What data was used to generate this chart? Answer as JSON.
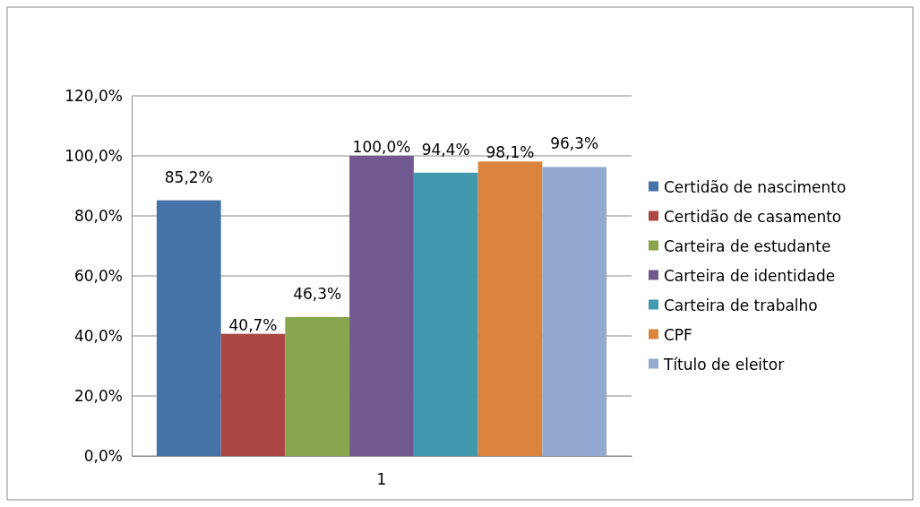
{
  "chart_data": {
    "type": "bar",
    "categories": [
      "1"
    ],
    "series": [
      {
        "name": "Certidão de nascimento",
        "color": "#4572a7",
        "values": [
          85.2
        ],
        "value_labels": [
          "85,2%"
        ]
      },
      {
        "name": "Certidão de casamento",
        "color": "#aa4643",
        "values": [
          40.7
        ],
        "value_labels": [
          "40,7%"
        ]
      },
      {
        "name": "Carteira de estudante",
        "color": "#89a54e",
        "values": [
          46.3
        ],
        "value_labels": [
          "46,3%"
        ]
      },
      {
        "name": "Carteira de identidade",
        "color": "#71588f",
        "values": [
          100.0
        ],
        "value_labels": [
          "100,0%"
        ]
      },
      {
        "name": "Carteira de trabalho",
        "color": "#4198af",
        "values": [
          94.4
        ],
        "value_labels": [
          "94,4%"
        ]
      },
      {
        "name": "CPF",
        "color": "#db843d",
        "values": [
          98.1
        ],
        "value_labels": [
          "98,1%"
        ]
      },
      {
        "name": "Título de eleitor",
        "color": "#93a9cf",
        "values": [
          96.3
        ],
        "value_labels": [
          "96,3%"
        ]
      }
    ],
    "ylim": [
      0,
      120
    ],
    "yticks": [
      {
        "value": 0,
        "label": "0,0%"
      },
      {
        "value": 20,
        "label": "20,0%"
      },
      {
        "value": 40,
        "label": "40,0%"
      },
      {
        "value": 60,
        "label": "60,0%"
      },
      {
        "value": 80,
        "label": "80,0%"
      },
      {
        "value": 100,
        "label": "100,0%"
      },
      {
        "value": 120,
        "label": "120,0%"
      }
    ],
    "grid": "y",
    "legend": "right"
  }
}
